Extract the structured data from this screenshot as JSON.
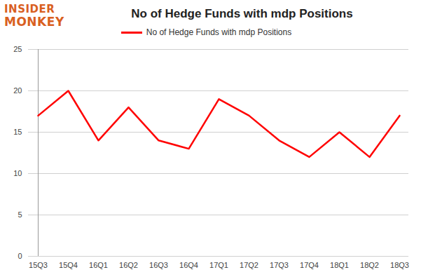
{
  "chart_data": {
    "type": "line",
    "title": "No of Hedge Funds with mdp Positions",
    "logo": [
      "INSIDER",
      "MONKEY"
    ],
    "categories": [
      "15Q3",
      "15Q4",
      "16Q1",
      "16Q2",
      "16Q3",
      "16Q4",
      "17Q1",
      "17Q2",
      "17Q3",
      "17Q4",
      "18Q1",
      "18Q2",
      "18Q3"
    ],
    "series": [
      {
        "name": "No of Hedge Funds with mdp Positions",
        "color": "#ff0000",
        "values": [
          17,
          20,
          14,
          18,
          14,
          13,
          19,
          17,
          14,
          12,
          15,
          12,
          17
        ]
      }
    ],
    "ylim": [
      0,
      25
    ],
    "yticks": [
      0,
      5,
      10,
      15,
      20,
      25
    ],
    "grid": true,
    "legend": "top"
  }
}
